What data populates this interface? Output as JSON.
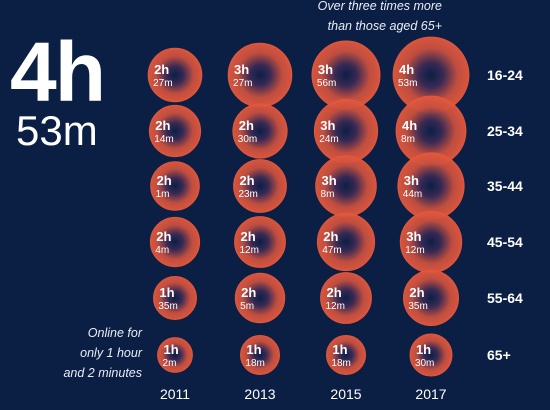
{
  "headline": {
    "hours": "4h",
    "minutes": "53m"
  },
  "annotations": {
    "top": [
      "Over three times more",
      "than those aged 65+"
    ],
    "bottom": [
      "Online for",
      "only 1 hour",
      "and 2 minutes"
    ]
  },
  "colors": {
    "background": "#0b1f45",
    "bubble": "#e0533a",
    "text": "#ffffff"
  },
  "chart_data": {
    "type": "bubble",
    "title": "",
    "xlabel": "",
    "ylabel": "",
    "categories": [
      "2011",
      "2013",
      "2015",
      "2017"
    ],
    "series": [
      {
        "name": "16-24",
        "values_minutes": [
          147,
          207,
          236,
          293
        ],
        "labels": [
          [
            "2h",
            "27m"
          ],
          [
            "3h",
            "27m"
          ],
          [
            "3h",
            "56m"
          ],
          [
            "4h",
            "53m"
          ]
        ]
      },
      {
        "name": "25-34",
        "values_minutes": [
          134,
          150,
          204,
          248
        ],
        "labels": [
          [
            "2h",
            "14m"
          ],
          [
            "2h",
            "30m"
          ],
          [
            "3h",
            "24m"
          ],
          [
            "4h",
            "8m"
          ]
        ]
      },
      {
        "name": "35-44",
        "values_minutes": [
          121,
          143,
          188,
          224
        ],
        "labels": [
          [
            "2h",
            "1m"
          ],
          [
            "2h",
            "23m"
          ],
          [
            "3h",
            "8m"
          ],
          [
            "3h",
            "44m"
          ]
        ]
      },
      {
        "name": "45-54",
        "values_minutes": [
          124,
          132,
          167,
          192
        ],
        "labels": [
          [
            "2h",
            "4m"
          ],
          [
            "2h",
            "12m"
          ],
          [
            "2h",
            "47m"
          ],
          [
            "3h",
            "12m"
          ]
        ]
      },
      {
        "name": "55-64",
        "values_minutes": [
          95,
          125,
          132,
          155
        ],
        "labels": [
          [
            "1h",
            "35m"
          ],
          [
            "2h",
            "5m"
          ],
          [
            "2h",
            "12m"
          ],
          [
            "2h",
            "35m"
          ]
        ]
      },
      {
        "name": "65+",
        "values_minutes": [
          62,
          78,
          78,
          90
        ],
        "labels": [
          [
            "1h",
            "2m"
          ],
          [
            "1h",
            "18m"
          ],
          [
            "1h",
            "18m"
          ],
          [
            "1h",
            "30m"
          ]
        ]
      }
    ],
    "grid": false,
    "legend": "none"
  }
}
